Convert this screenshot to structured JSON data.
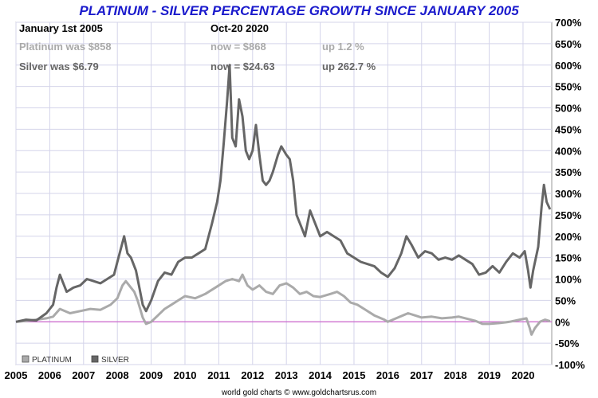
{
  "chart_data": {
    "type": "line",
    "title": "PLATINUM - SILVER PERCENTAGE GROWTH SINCE JANUARY 2005",
    "info": {
      "start_label": "January 1st 2005",
      "end_label": "Oct-20  2020",
      "platinum": {
        "was": "Platinum was $858",
        "now": "now = $868",
        "change": "up 1.2 %"
      },
      "silver": {
        "was": "Silver was $6.79",
        "now": "now = $24.63",
        "change": "up 262.7 %"
      }
    },
    "x_ticks": [
      "2005",
      "2006",
      "2007",
      "2008",
      "2009",
      "2010",
      "2011",
      "2012",
      "2013",
      "2014",
      "2015",
      "2016",
      "2017",
      "2018",
      "2019",
      "2020"
    ],
    "y_ticks": [
      "700%",
      "650%",
      "600%",
      "550%",
      "500%",
      "450%",
      "400%",
      "350%",
      "300%",
      "250%",
      "200%",
      "150%",
      "100%",
      "50%",
      "0%",
      "-50%",
      "-100%"
    ],
    "ylim": [
      -100,
      700
    ],
    "xlim": [
      2005.0,
      2020.85
    ],
    "grid": true,
    "legend_position": "bottom-left",
    "series": [
      {
        "name": "PLATINUM",
        "color": "#aaaaaa",
        "points": [
          [
            2005.0,
            0
          ],
          [
            2005.3,
            2
          ],
          [
            2005.6,
            5
          ],
          [
            2005.9,
            8
          ],
          [
            2006.1,
            12
          ],
          [
            2006.3,
            30
          ],
          [
            2006.6,
            20
          ],
          [
            2006.9,
            25
          ],
          [
            2007.2,
            30
          ],
          [
            2007.5,
            28
          ],
          [
            2007.8,
            40
          ],
          [
            2008.0,
            55
          ],
          [
            2008.15,
            85
          ],
          [
            2008.25,
            95
          ],
          [
            2008.4,
            80
          ],
          [
            2008.5,
            70
          ],
          [
            2008.6,
            50
          ],
          [
            2008.75,
            10
          ],
          [
            2008.85,
            -5
          ],
          [
            2009.0,
            0
          ],
          [
            2009.2,
            15
          ],
          [
            2009.4,
            30
          ],
          [
            2009.6,
            40
          ],
          [
            2009.8,
            50
          ],
          [
            2010.0,
            60
          ],
          [
            2010.3,
            55
          ],
          [
            2010.6,
            65
          ],
          [
            2010.9,
            80
          ],
          [
            2011.2,
            95
          ],
          [
            2011.4,
            100
          ],
          [
            2011.6,
            95
          ],
          [
            2011.7,
            110
          ],
          [
            2011.85,
            85
          ],
          [
            2012.0,
            75
          ],
          [
            2012.2,
            85
          ],
          [
            2012.4,
            70
          ],
          [
            2012.6,
            65
          ],
          [
            2012.8,
            85
          ],
          [
            2013.0,
            90
          ],
          [
            2013.2,
            80
          ],
          [
            2013.4,
            65
          ],
          [
            2013.6,
            70
          ],
          [
            2013.8,
            60
          ],
          [
            2014.0,
            58
          ],
          [
            2014.3,
            65
          ],
          [
            2014.5,
            70
          ],
          [
            2014.7,
            60
          ],
          [
            2014.9,
            45
          ],
          [
            2015.1,
            40
          ],
          [
            2015.3,
            30
          ],
          [
            2015.6,
            15
          ],
          [
            2015.9,
            5
          ],
          [
            2016.0,
            0
          ],
          [
            2016.3,
            10
          ],
          [
            2016.6,
            20
          ],
          [
            2016.8,
            15
          ],
          [
            2017.0,
            10
          ],
          [
            2017.3,
            12
          ],
          [
            2017.6,
            8
          ],
          [
            2017.9,
            10
          ],
          [
            2018.1,
            12
          ],
          [
            2018.3,
            8
          ],
          [
            2018.6,
            2
          ],
          [
            2018.8,
            -5
          ],
          [
            2019.0,
            -5
          ],
          [
            2019.3,
            -3
          ],
          [
            2019.6,
            0
          ],
          [
            2019.9,
            5
          ],
          [
            2020.1,
            8
          ],
          [
            2020.2,
            -15
          ],
          [
            2020.25,
            -30
          ],
          [
            2020.35,
            -15
          ],
          [
            2020.5,
            0
          ],
          [
            2020.65,
            5
          ],
          [
            2020.8,
            1.2
          ]
        ]
      },
      {
        "name": "SILVER",
        "color": "#666666",
        "points": [
          [
            2005.0,
            0
          ],
          [
            2005.3,
            5
          ],
          [
            2005.6,
            3
          ],
          [
            2005.9,
            20
          ],
          [
            2006.1,
            40
          ],
          [
            2006.2,
            80
          ],
          [
            2006.3,
            110
          ],
          [
            2006.4,
            90
          ],
          [
            2006.5,
            70
          ],
          [
            2006.7,
            80
          ],
          [
            2006.9,
            85
          ],
          [
            2007.1,
            100
          ],
          [
            2007.3,
            95
          ],
          [
            2007.5,
            90
          ],
          [
            2007.7,
            100
          ],
          [
            2007.9,
            110
          ],
          [
            2008.0,
            140
          ],
          [
            2008.15,
            185
          ],
          [
            2008.2,
            200
          ],
          [
            2008.3,
            160
          ],
          [
            2008.4,
            150
          ],
          [
            2008.55,
            120
          ],
          [
            2008.65,
            80
          ],
          [
            2008.75,
            40
          ],
          [
            2008.85,
            25
          ],
          [
            2009.0,
            50
          ],
          [
            2009.2,
            95
          ],
          [
            2009.4,
            115
          ],
          [
            2009.6,
            110
          ],
          [
            2009.8,
            140
          ],
          [
            2010.0,
            150
          ],
          [
            2010.2,
            150
          ],
          [
            2010.4,
            160
          ],
          [
            2010.6,
            170
          ],
          [
            2010.8,
            230
          ],
          [
            2010.95,
            280
          ],
          [
            2011.05,
            330
          ],
          [
            2011.15,
            420
          ],
          [
            2011.25,
            520
          ],
          [
            2011.32,
            600
          ],
          [
            2011.4,
            430
          ],
          [
            2011.5,
            410
          ],
          [
            2011.6,
            520
          ],
          [
            2011.7,
            480
          ],
          [
            2011.8,
            400
          ],
          [
            2011.9,
            380
          ],
          [
            2012.0,
            400
          ],
          [
            2012.1,
            460
          ],
          [
            2012.2,
            390
          ],
          [
            2012.3,
            330
          ],
          [
            2012.4,
            320
          ],
          [
            2012.5,
            330
          ],
          [
            2012.6,
            350
          ],
          [
            2012.75,
            390
          ],
          [
            2012.85,
            410
          ],
          [
            2013.0,
            390
          ],
          [
            2013.1,
            380
          ],
          [
            2013.2,
            330
          ],
          [
            2013.3,
            250
          ],
          [
            2013.45,
            220
          ],
          [
            2013.55,
            200
          ],
          [
            2013.7,
            260
          ],
          [
            2013.85,
            230
          ],
          [
            2014.0,
            200
          ],
          [
            2014.2,
            210
          ],
          [
            2014.4,
            200
          ],
          [
            2014.6,
            190
          ],
          [
            2014.8,
            160
          ],
          [
            2015.0,
            150
          ],
          [
            2015.2,
            140
          ],
          [
            2015.4,
            135
          ],
          [
            2015.6,
            130
          ],
          [
            2015.8,
            115
          ],
          [
            2016.0,
            105
          ],
          [
            2016.2,
            125
          ],
          [
            2016.4,
            160
          ],
          [
            2016.55,
            200
          ],
          [
            2016.7,
            180
          ],
          [
            2016.9,
            150
          ],
          [
            2017.1,
            165
          ],
          [
            2017.3,
            160
          ],
          [
            2017.5,
            145
          ],
          [
            2017.7,
            150
          ],
          [
            2017.9,
            145
          ],
          [
            2018.1,
            155
          ],
          [
            2018.3,
            145
          ],
          [
            2018.5,
            135
          ],
          [
            2018.7,
            110
          ],
          [
            2018.9,
            115
          ],
          [
            2019.1,
            130
          ],
          [
            2019.3,
            115
          ],
          [
            2019.5,
            140
          ],
          [
            2019.7,
            160
          ],
          [
            2019.9,
            150
          ],
          [
            2020.05,
            165
          ],
          [
            2020.15,
            120
          ],
          [
            2020.22,
            80
          ],
          [
            2020.3,
            120
          ],
          [
            2020.45,
            175
          ],
          [
            2020.55,
            270
          ],
          [
            2020.62,
            320
          ],
          [
            2020.7,
            280
          ],
          [
            2020.8,
            262.7
          ]
        ]
      }
    ],
    "zero_line_color": "#cc66cc",
    "footer": "world gold charts © www.goldchartsrus.com"
  }
}
